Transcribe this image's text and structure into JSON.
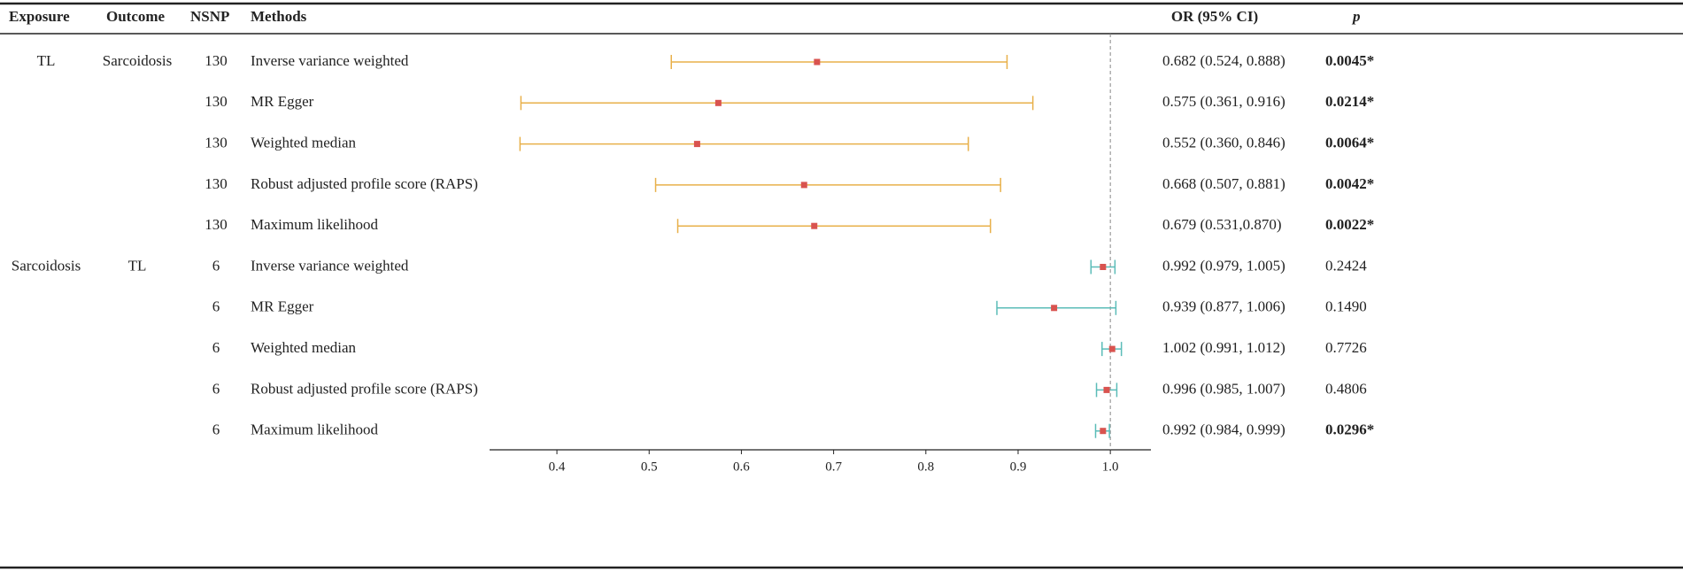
{
  "chart_data": {
    "type": "forest",
    "columns": [
      "Exposure",
      "Outcome",
      "NSNP",
      "Methods",
      "OR (95% CI)",
      "p"
    ],
    "xlim": [
      0.327,
      1.044
    ],
    "xticks": [
      0.4,
      0.5,
      0.6,
      0.7,
      0.8,
      0.9,
      {
        "value": 1,
        "label": "1.0"
      }
    ],
    "reference_line": 1,
    "point_color": "#d9534f",
    "groups": [
      {
        "exposure": "TL",
        "outcome": "Sarcoidosis",
        "color": "#e8b04a",
        "nsnp": [
          130,
          130,
          130,
          130,
          130
        ],
        "methods": [
          "Inverse variance weighted",
          "MR Egger",
          "Weighted median",
          "Robust adjusted profile score (RAPS)",
          "Maximum likelihood"
        ],
        "values": [
          0.682,
          0.575,
          0.552,
          0.668,
          0.679
        ],
        "lower": [
          0.524,
          0.361,
          0.36,
          0.507,
          0.531
        ],
        "upper": [
          0.888,
          0.916,
          0.846,
          0.881,
          0.87
        ],
        "value_labels": [
          "0.682 (0.524, 0.888)",
          "0.575 (0.361, 0.916)",
          "0.552 (0.360, 0.846)",
          "0.668 (0.507, 0.881)",
          "0.679 (0.531,0.870)"
        ],
        "p": [
          0.0045,
          0.0214,
          0.0064,
          0.0042,
          0.0022
        ],
        "p_labels": [
          "0.0045*",
          "0.0214*",
          "0.0064*",
          "0.0042*",
          "0.0022*"
        ],
        "significant": [
          true,
          true,
          true,
          true,
          true
        ]
      },
      {
        "exposure": "Sarcoidosis",
        "outcome": "TL",
        "color": "#5bbcb8",
        "nsnp": [
          6,
          6,
          6,
          6,
          6
        ],
        "methods": [
          "Inverse variance weighted",
          "MR Egger",
          "Weighted median",
          "Robust adjusted profile score (RAPS)",
          "Maximum likelihood"
        ],
        "values": [
          0.992,
          0.939,
          1.002,
          0.996,
          0.992
        ],
        "lower": [
          0.979,
          0.877,
          0.991,
          0.985,
          0.984
        ],
        "upper": [
          1.005,
          1.006,
          1.012,
          1.007,
          0.999
        ],
        "value_labels": [
          "0.992 (0.979, 1.005)",
          "0.939 (0.877, 1.006)",
          "1.002 (0.991, 1.012)",
          "0.996 (0.985, 1.007)",
          "0.992 (0.984, 0.999)"
        ],
        "p": [
          0.2424,
          0.149,
          0.7726,
          0.4806,
          0.0296
        ],
        "p_labels": [
          "0.2424",
          "0.1490",
          "0.7726",
          "0.4806",
          "0.0296*"
        ],
        "significant": [
          false,
          false,
          false,
          false,
          true
        ]
      }
    ]
  }
}
